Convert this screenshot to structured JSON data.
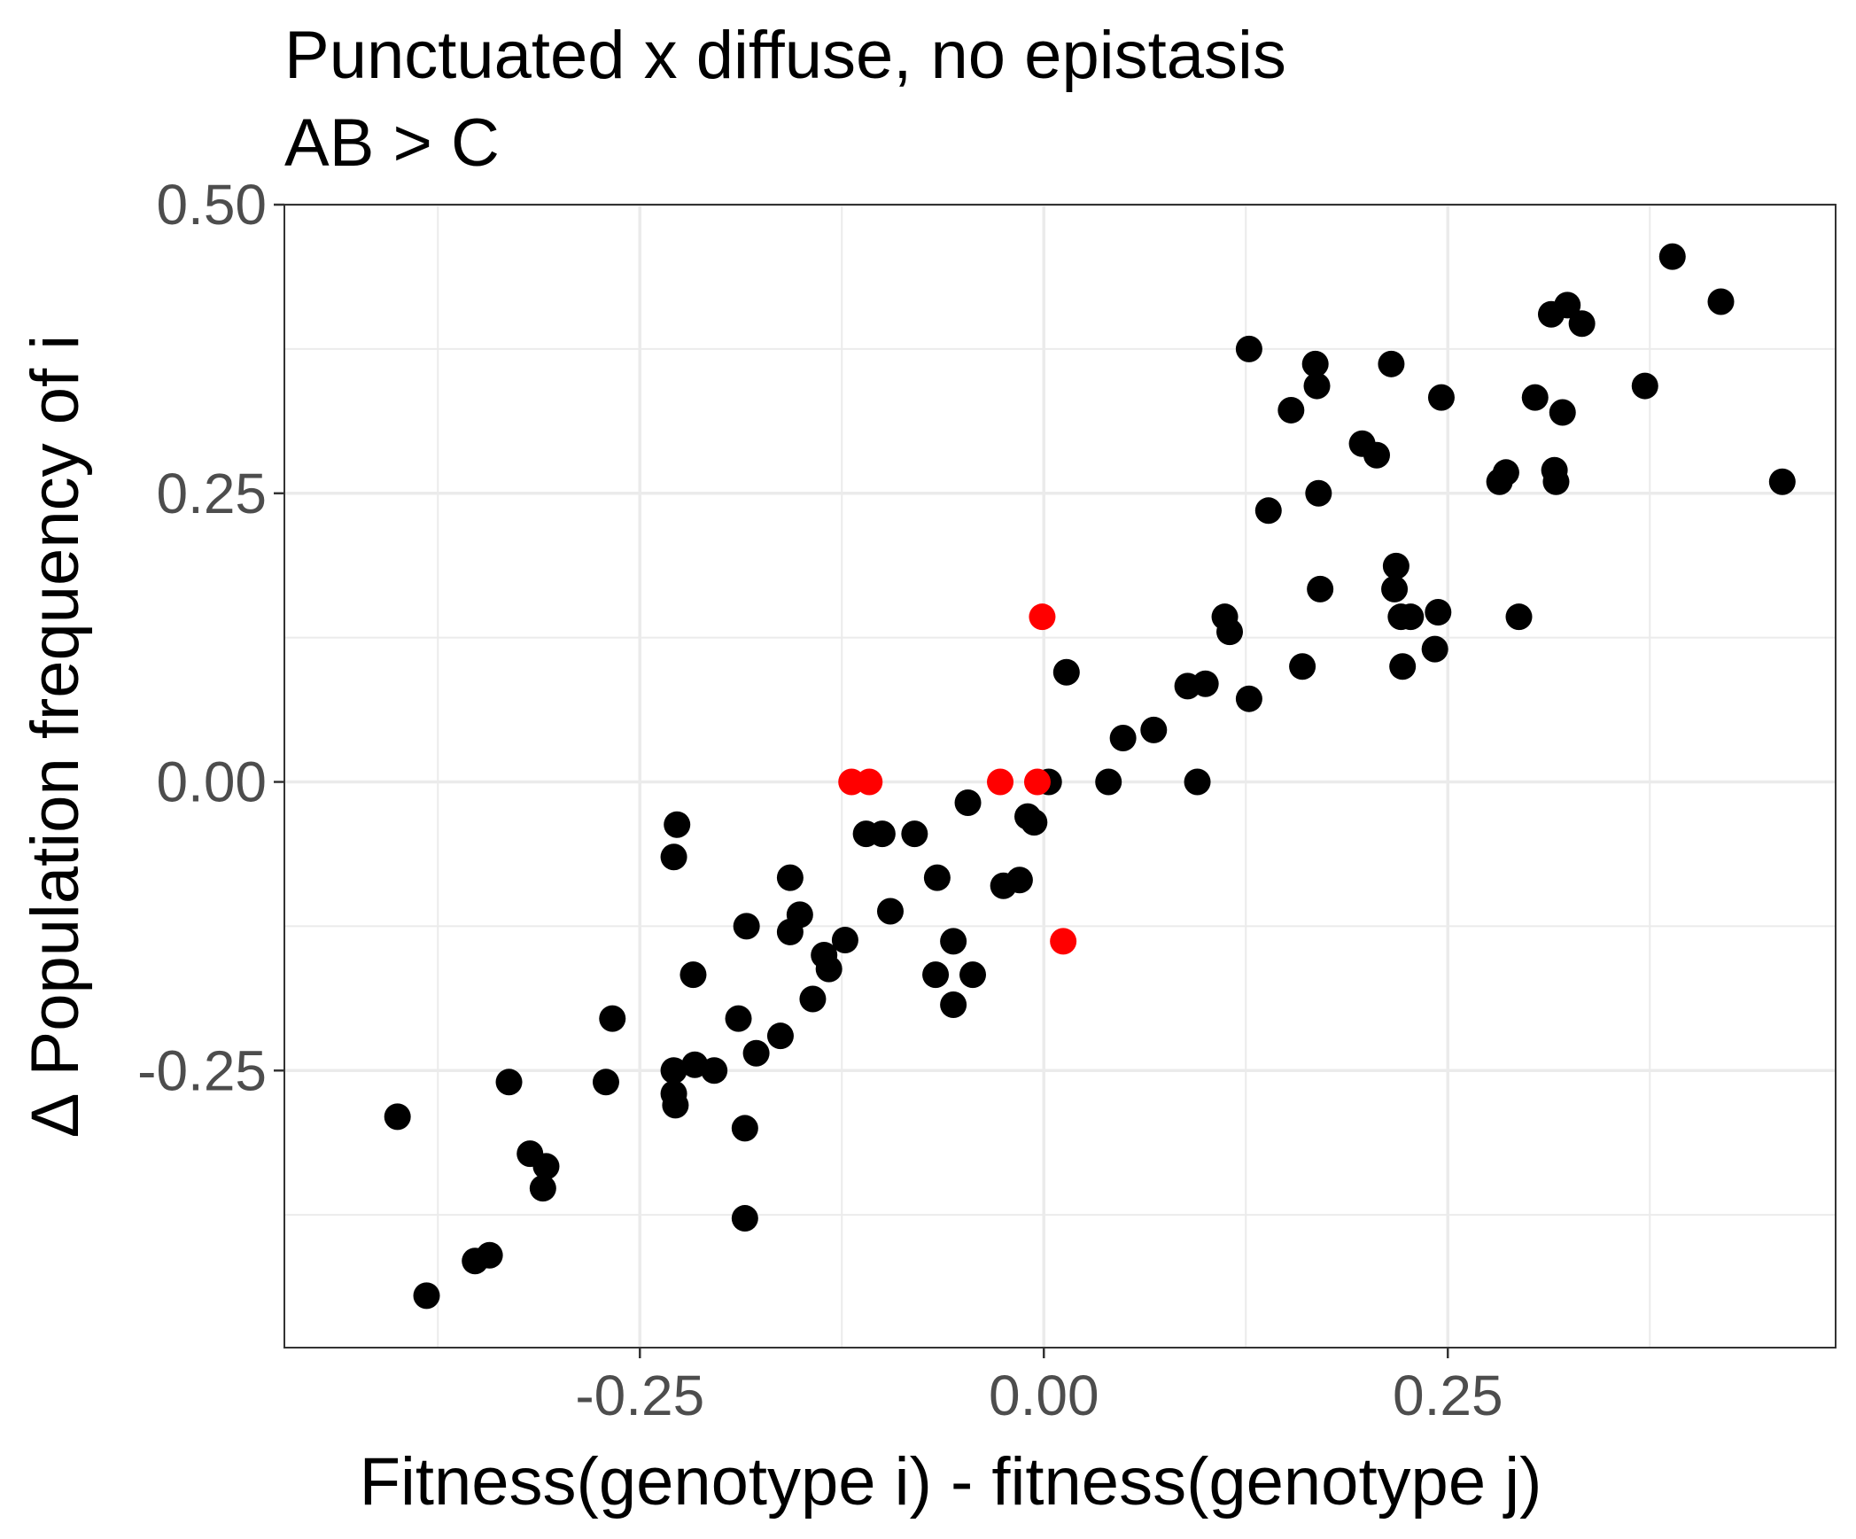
{
  "chart_data": {
    "type": "scatter",
    "title": "Punctuated x diffuse, no epistasis",
    "subtitle": "AB > C",
    "xlabel": "Fitness(genotype i) - fitness(genotype j)",
    "ylabel": "∆ Population frequency of i",
    "xlim": [
      -0.47,
      0.49
    ],
    "ylim": [
      -0.49,
      0.5
    ],
    "x_ticks": [
      -0.25,
      0.0,
      0.25
    ],
    "x_tick_labels": [
      "-0.25",
      "0.00",
      "0.25"
    ],
    "y_ticks": [
      -0.25,
      0.0,
      0.25,
      0.5
    ],
    "y_tick_labels": [
      "-0.25",
      "0.00",
      "0.25",
      "0.50"
    ],
    "grid": true,
    "legend": "none",
    "colors": {
      "black_series": "#000000",
      "red_series": "#ff0000",
      "grid": "#ebebeb",
      "panel_border": "#333333"
    },
    "series": [
      {
        "color": "#000000",
        "points": [
          [
            -0.4,
            -0.29
          ],
          [
            -0.382,
            -0.445
          ],
          [
            -0.352,
            -0.415
          ],
          [
            -0.343,
            -0.41
          ],
          [
            -0.331,
            -0.26
          ],
          [
            -0.318,
            -0.322
          ],
          [
            -0.308,
            -0.333
          ],
          [
            -0.31,
            -0.352
          ],
          [
            -0.271,
            -0.26
          ],
          [
            -0.267,
            -0.205
          ],
          [
            -0.229,
            -0.065
          ],
          [
            -0.227,
            -0.037
          ],
          [
            -0.229,
            -0.25
          ],
          [
            -0.229,
            -0.27
          ],
          [
            -0.228,
            -0.28
          ],
          [
            -0.217,
            -0.167
          ],
          [
            -0.216,
            -0.245
          ],
          [
            -0.204,
            -0.25
          ],
          [
            -0.189,
            -0.205
          ],
          [
            -0.184,
            -0.125
          ],
          [
            -0.185,
            -0.3
          ],
          [
            -0.185,
            -0.378
          ],
          [
            -0.178,
            -0.235
          ],
          [
            -0.163,
            -0.22
          ],
          [
            -0.157,
            -0.13
          ],
          [
            -0.157,
            -0.083
          ],
          [
            -0.151,
            -0.115
          ],
          [
            -0.143,
            -0.188
          ],
          [
            -0.136,
            -0.15
          ],
          [
            -0.133,
            -0.162
          ],
          [
            -0.123,
            -0.137
          ],
          [
            -0.11,
            -0.045
          ],
          [
            -0.1,
            -0.045
          ],
          [
            -0.095,
            -0.112
          ],
          [
            -0.08,
            -0.045
          ],
          [
            -0.067,
            -0.167
          ],
          [
            -0.066,
            -0.083
          ],
          [
            -0.056,
            -0.193
          ],
          [
            -0.056,
            -0.138
          ],
          [
            -0.047,
            -0.018
          ],
          [
            -0.044,
            -0.167
          ],
          [
            -0.025,
            -0.09
          ],
          [
            -0.015,
            -0.085
          ],
          [
            -0.01,
            -0.03
          ],
          [
            -0.006,
            -0.035
          ],
          [
            0.003,
            0.0
          ],
          [
            0.014,
            0.095
          ],
          [
            0.04,
            0.0
          ],
          [
            0.049,
            0.038
          ],
          [
            0.068,
            0.045
          ],
          [
            0.089,
            0.083
          ],
          [
            0.095,
            0.0
          ],
          [
            0.1,
            0.085
          ],
          [
            0.112,
            0.143
          ],
          [
            0.115,
            0.13
          ],
          [
            0.127,
            0.072
          ],
          [
            0.127,
            0.375
          ],
          [
            0.139,
            0.235
          ],
          [
            0.153,
            0.322
          ],
          [
            0.16,
            0.1
          ],
          [
            0.168,
            0.362
          ],
          [
            0.169,
            0.343
          ],
          [
            0.17,
            0.25
          ],
          [
            0.171,
            0.167
          ],
          [
            0.197,
            0.293
          ],
          [
            0.206,
            0.283
          ],
          [
            0.215,
            0.362
          ],
          [
            0.217,
            0.167
          ],
          [
            0.218,
            0.187
          ],
          [
            0.221,
            0.143
          ],
          [
            0.222,
            0.1
          ],
          [
            0.227,
            0.143
          ],
          [
            0.242,
            0.115
          ],
          [
            0.244,
            0.147
          ],
          [
            0.246,
            0.333
          ],
          [
            0.282,
            0.26
          ],
          [
            0.286,
            0.268
          ],
          [
            0.294,
            0.143
          ],
          [
            0.304,
            0.333
          ],
          [
            0.314,
            0.405
          ],
          [
            0.316,
            0.27
          ],
          [
            0.317,
            0.26
          ],
          [
            0.321,
            0.32
          ],
          [
            0.324,
            0.413
          ],
          [
            0.333,
            0.397
          ],
          [
            0.372,
            0.343
          ],
          [
            0.389,
            0.455
          ],
          [
            0.419,
            0.416
          ],
          [
            0.457,
            0.26
          ]
        ]
      },
      {
        "color": "#ff0000",
        "points": [
          [
            -0.119,
            0.0
          ],
          [
            -0.108,
            0.0
          ],
          [
            -0.027,
            0.0
          ],
          [
            -0.004,
            0.0
          ],
          [
            -0.001,
            0.143
          ],
          [
            0.012,
            -0.138
          ]
        ]
      }
    ]
  }
}
